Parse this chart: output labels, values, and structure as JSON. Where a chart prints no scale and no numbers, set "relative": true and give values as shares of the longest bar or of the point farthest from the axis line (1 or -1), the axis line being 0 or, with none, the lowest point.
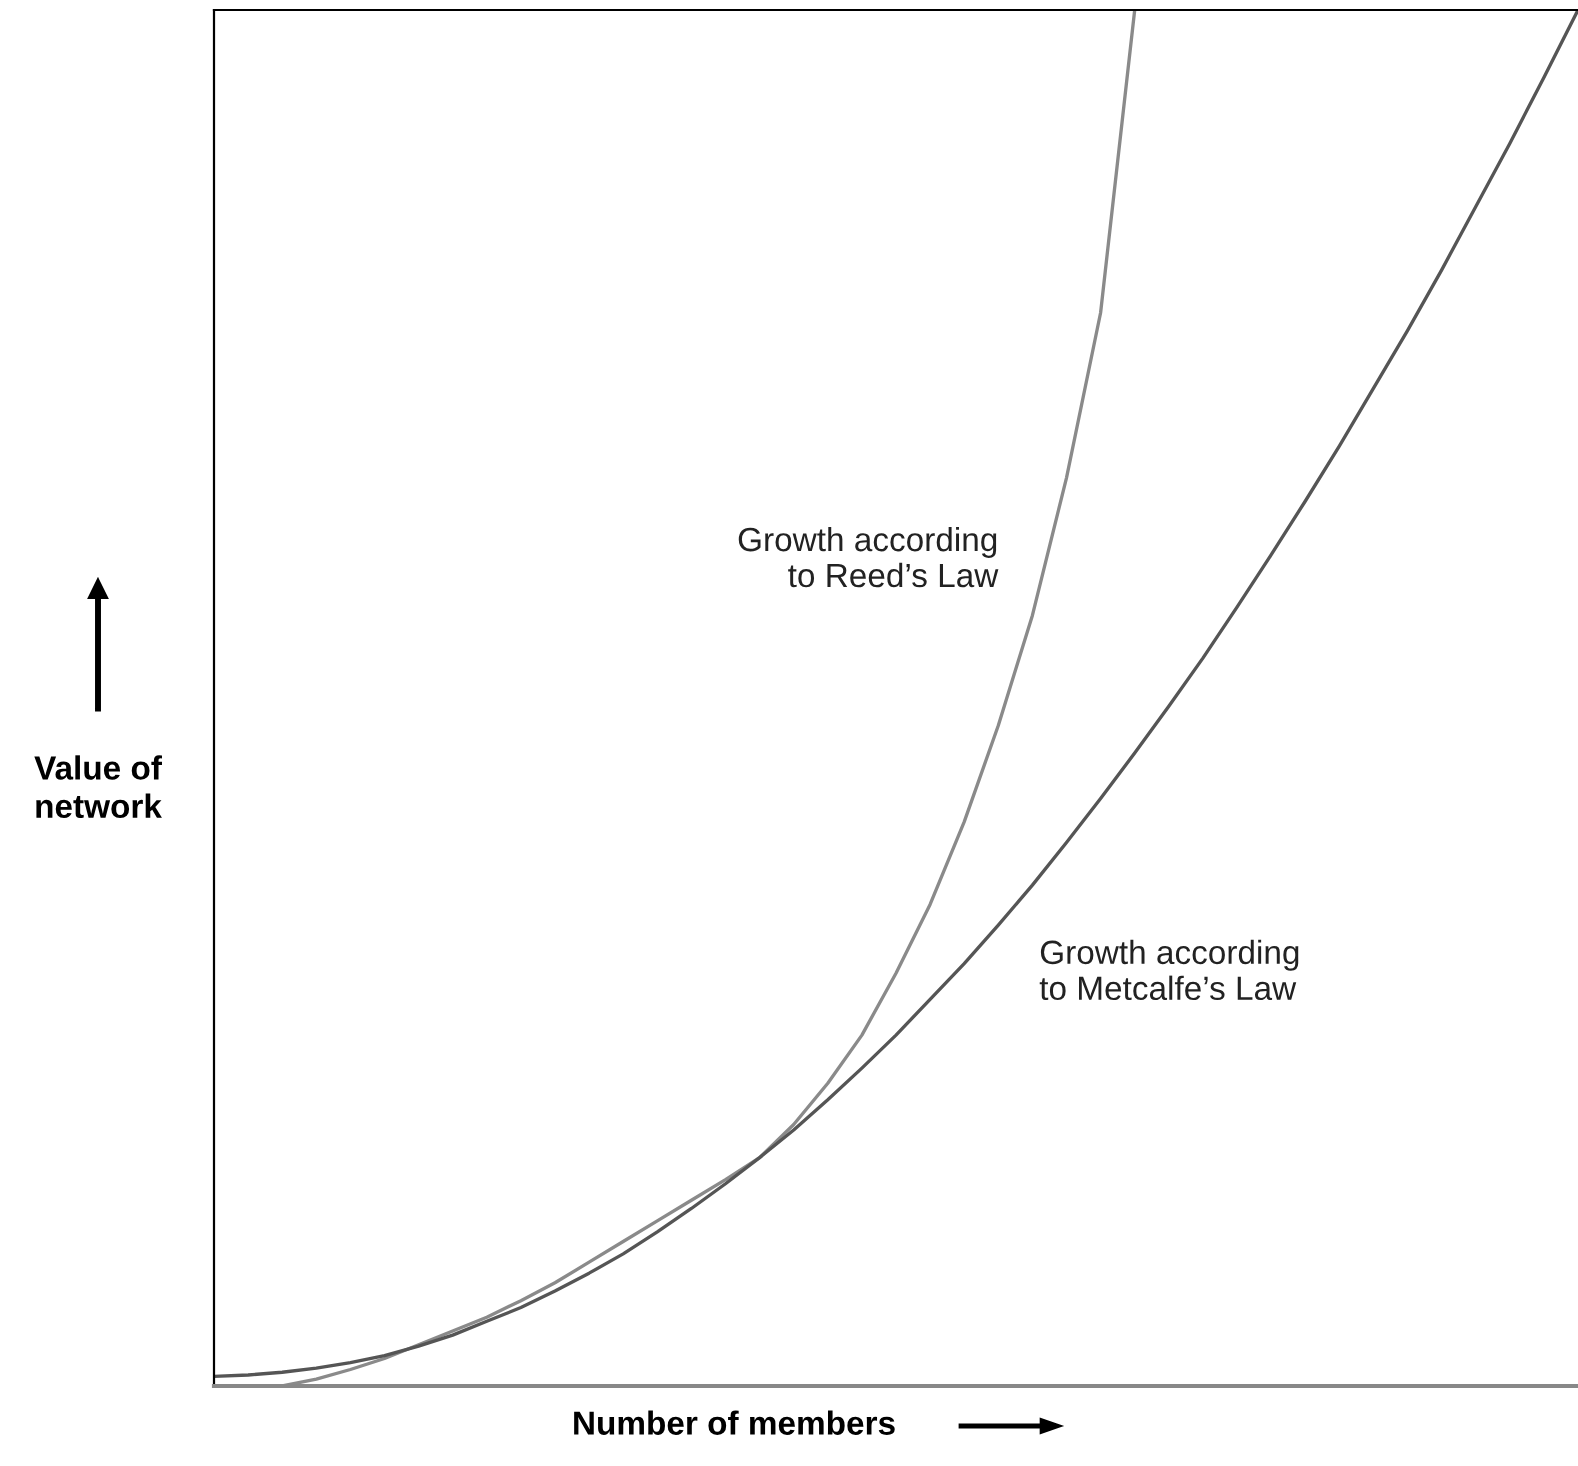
{
  "chart_data": {
    "type": "line",
    "relative": true,
    "xlabel": "Number of members",
    "ylabel": "Value of\nnetwork",
    "legend": false,
    "grid": false,
    "marker": "none",
    "line_style": "solid",
    "categories": [
      null,
      null,
      null,
      null,
      null,
      null,
      null,
      null,
      null,
      null,
      null,
      null,
      null,
      null,
      null,
      null,
      null,
      null,
      null,
      null,
      null,
      null,
      null,
      null,
      null,
      null,
      null,
      null,
      null,
      null,
      null,
      null,
      null,
      null,
      null,
      null,
      null,
      null,
      null,
      null,
      null
    ],
    "series": [
      {
        "name": "Growth according\nto Reed’s Law",
        "color": "#8a8a8a",
        "values": [
          null,
          null,
          0,
          0.005,
          0.012,
          0.02,
          0.03,
          0.04,
          0.05,
          0.062,
          0.075,
          0.09,
          0.105,
          0.12,
          0.135,
          0.15,
          0.166,
          0.19,
          0.22,
          0.255,
          0.3,
          0.35,
          0.41,
          0.48,
          0.56,
          0.66,
          0.78,
          1.0,
          null,
          null,
          null,
          null,
          null,
          null,
          null,
          null,
          null,
          null,
          null,
          null,
          null
        ]
      },
      {
        "name": "Growth according\nto Metcalfe’s Law",
        "color": "#555555",
        "values": [
          0.007,
          0.008,
          0.01,
          0.013,
          0.017,
          0.022,
          0.029,
          0.037,
          0.047,
          0.057,
          0.069,
          0.082,
          0.096,
          0.112,
          0.129,
          0.147,
          0.166,
          0.186,
          0.208,
          0.231,
          0.255,
          0.281,
          0.307,
          0.335,
          0.364,
          0.395,
          0.427,
          0.46,
          0.494,
          0.529,
          0.566,
          0.604,
          0.643,
          0.683,
          0.725,
          0.767,
          0.811,
          0.857,
          0.903,
          0.951,
          1
        ]
      }
    ]
  }
}
